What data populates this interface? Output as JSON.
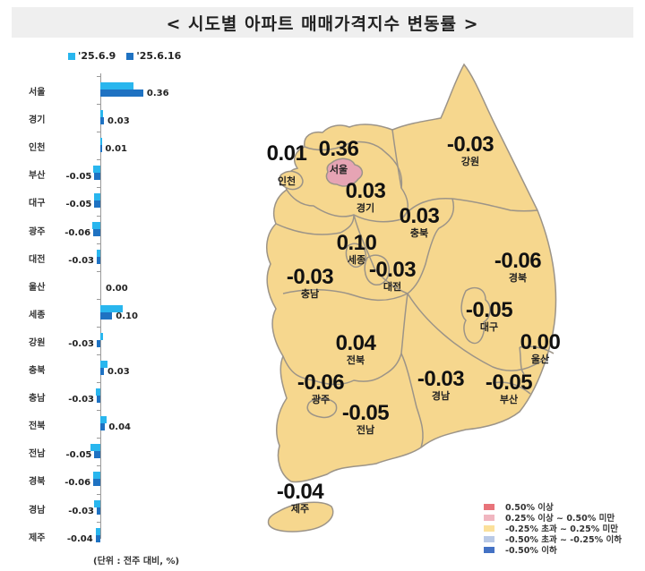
{
  "title": "< 시도별 아파트 매매가격지수 변동률 >",
  "legend_top": [
    {
      "label": "'25.6.9",
      "color": "#29b6ee"
    },
    {
      "label": "'25.6.16",
      "color": "#1f72c2"
    }
  ],
  "unit_note": "(단위 : 전주 대비, %)",
  "chart_data": [
    {
      "type": "bar",
      "orientation": "horizontal",
      "title": "시도별 아파트 매매가격지수 변동률",
      "categories": [
        "서울",
        "경기",
        "인천",
        "부산",
        "대구",
        "광주",
        "대전",
        "울산",
        "세종",
        "강원",
        "충북",
        "충남",
        "전북",
        "전남",
        "경북",
        "경남",
        "제주"
      ],
      "series": [
        {
          "name": "'25.6.9",
          "color": "#29b6ee",
          "values": [
            0.28,
            0.02,
            0.01,
            -0.06,
            -0.05,
            -0.07,
            -0.03,
            0.0,
            0.19,
            0.02,
            0.06,
            -0.04,
            0.05,
            -0.08,
            -0.06,
            -0.05,
            -0.04
          ]
        },
        {
          "name": "'25.6.16",
          "color": "#1f72c2",
          "values": [
            0.36,
            0.03,
            0.01,
            -0.05,
            -0.05,
            -0.06,
            -0.03,
            0.0,
            0.1,
            -0.03,
            0.03,
            -0.03,
            0.04,
            -0.05,
            -0.06,
            -0.03,
            -0.04
          ]
        }
      ],
      "data_labels": [
        "0.36",
        "0.03",
        "0.01",
        "-0.05",
        "-0.05",
        "-0.06",
        "-0.03",
        "0.00",
        "0.10",
        "-0.03",
        "0.03",
        "-0.03",
        "0.04",
        "-0.05",
        "-0.06",
        "-0.03",
        "-0.04"
      ],
      "xlabel": "",
      "ylabel": "",
      "unit": "(단위 : 전주 대비, %)",
      "grid": false,
      "legend_position": "top"
    },
    {
      "type": "heatmap",
      "subtype": "choropleth-map",
      "title": "시도별 아파트 매매가격지수 변동률 ('25.6.16)",
      "regions": [
        {
          "name": "인천",
          "value": "0.01"
        },
        {
          "name": "서울",
          "value": "0.36"
        },
        {
          "name": "강원",
          "value": "-0.03"
        },
        {
          "name": "경기",
          "value": "0.03"
        },
        {
          "name": "충북",
          "value": "0.03"
        },
        {
          "name": "세종",
          "value": "0.10"
        },
        {
          "name": "경북",
          "value": "-0.06"
        },
        {
          "name": "충남",
          "value": "-0.03"
        },
        {
          "name": "대전",
          "value": "-0.03"
        },
        {
          "name": "대구",
          "value": "-0.05"
        },
        {
          "name": "전북",
          "value": "0.04"
        },
        {
          "name": "울산",
          "value": "0.00"
        },
        {
          "name": "광주",
          "value": "-0.06"
        },
        {
          "name": "경남",
          "value": "-0.03"
        },
        {
          "name": "부산",
          "value": "-0.05"
        },
        {
          "name": "전남",
          "value": "-0.05"
        },
        {
          "name": "제주",
          "value": "-0.04"
        }
      ],
      "legend": [
        {
          "label": "0.50% 이상",
          "color": "#e8737a"
        },
        {
          "label": "0.25% 이상 ~ 0.50% 미만",
          "color": "#f0b6c0"
        },
        {
          "label": "-0.25% 초과 ~ 0.25% 미만",
          "color": "#fbe09a"
        },
        {
          "label": "-0.50% 초과 ~ -0.25% 이하",
          "color": "#b9c9e6"
        },
        {
          "label": "-0.50% 이하",
          "color": "#4472c4"
        }
      ]
    }
  ],
  "colors": {
    "map_fill": "#f6d78e",
    "seoul_fill": "#e6a4b4",
    "border": "#9c9488"
  }
}
